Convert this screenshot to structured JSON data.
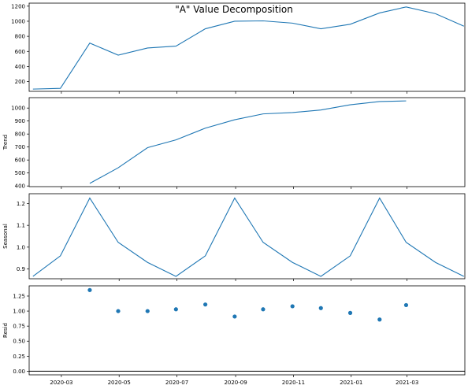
{
  "colors": {
    "series": "#1f77b4",
    "axis": "#000000"
  },
  "chart_data": {
    "type": "line",
    "title": "\"A\" Value Decomposition",
    "x_dates": [
      "2020-01-31",
      "2020-02-29",
      "2020-03-31",
      "2020-04-30",
      "2020-05-31",
      "2020-06-30",
      "2020-07-31",
      "2020-08-31",
      "2020-09-30",
      "2020-10-31",
      "2020-11-30",
      "2020-12-31",
      "2021-01-31",
      "2021-02-28",
      "2021-03-31",
      "2021-04-30"
    ],
    "x_range": [
      "2020-01-27",
      "2021-05-01"
    ],
    "x_ticks": [
      {
        "date": "2020-03-01",
        "label": "2020-03"
      },
      {
        "date": "2020-05-01",
        "label": "2020-05"
      },
      {
        "date": "2020-07-01",
        "label": "2020-07"
      },
      {
        "date": "2020-09-01",
        "label": "2020-09"
      },
      {
        "date": "2020-11-01",
        "label": "2020-11"
      },
      {
        "date": "2021-01-01",
        "label": "2021-01"
      },
      {
        "date": "2021-03-01",
        "label": "2021-03"
      }
    ],
    "panels": [
      {
        "id": "observed",
        "kind": "line",
        "ylabel": "",
        "ylim": [
          70,
          1240
        ],
        "yticks": [
          200,
          400,
          600,
          800,
          1000,
          1200
        ],
        "ytick_labels": [
          "200",
          "400",
          "600",
          "800",
          "1000",
          "1200"
        ],
        "values": [
          100,
          110,
          710,
          550,
          645,
          670,
          900,
          1000,
          1005,
          975,
          900,
          960,
          1110,
          1190,
          1100,
          935
        ]
      },
      {
        "id": "trend",
        "kind": "line",
        "ylabel": "Trend",
        "ylim": [
          395,
          1080
        ],
        "yticks": [
          400,
          500,
          600,
          700,
          800,
          900,
          1000
        ],
        "ytick_labels": [
          "400",
          "500",
          "600",
          "700",
          "800",
          "900",
          "1000"
        ],
        "values": [
          null,
          null,
          420,
          540,
          695,
          755,
          845,
          910,
          955,
          965,
          985,
          1025,
          1050,
          1055,
          null,
          null
        ]
      },
      {
        "id": "seasonal",
        "kind": "line",
        "ylabel": "Seasonal",
        "ylim": [
          0.855,
          1.245
        ],
        "yticks": [
          0.9,
          1.0,
          1.1,
          1.2
        ],
        "ytick_labels": [
          "0.9",
          "1.0",
          "1.1",
          "1.2"
        ],
        "values": [
          0.866,
          0.96,
          1.225,
          1.022,
          0.93,
          0.866,
          0.96,
          1.225,
          1.022,
          0.93,
          0.866,
          0.96,
          1.225,
          1.022,
          0.93,
          0.866
        ]
      },
      {
        "id": "resid",
        "kind": "scatter",
        "ylabel": "Resid",
        "ylim": [
          -0.06,
          1.42
        ],
        "yticks": [
          0.0,
          0.25,
          0.5,
          0.75,
          1.0,
          1.25
        ],
        "ytick_labels": [
          "0.00",
          "0.25",
          "0.50",
          "0.75",
          "1.00",
          "1.25"
        ],
        "baseline": 0,
        "values": [
          null,
          null,
          1.35,
          1.0,
          1.0,
          1.03,
          1.11,
          0.91,
          1.03,
          1.08,
          1.05,
          0.97,
          0.86,
          1.1,
          null,
          null
        ]
      }
    ]
  }
}
